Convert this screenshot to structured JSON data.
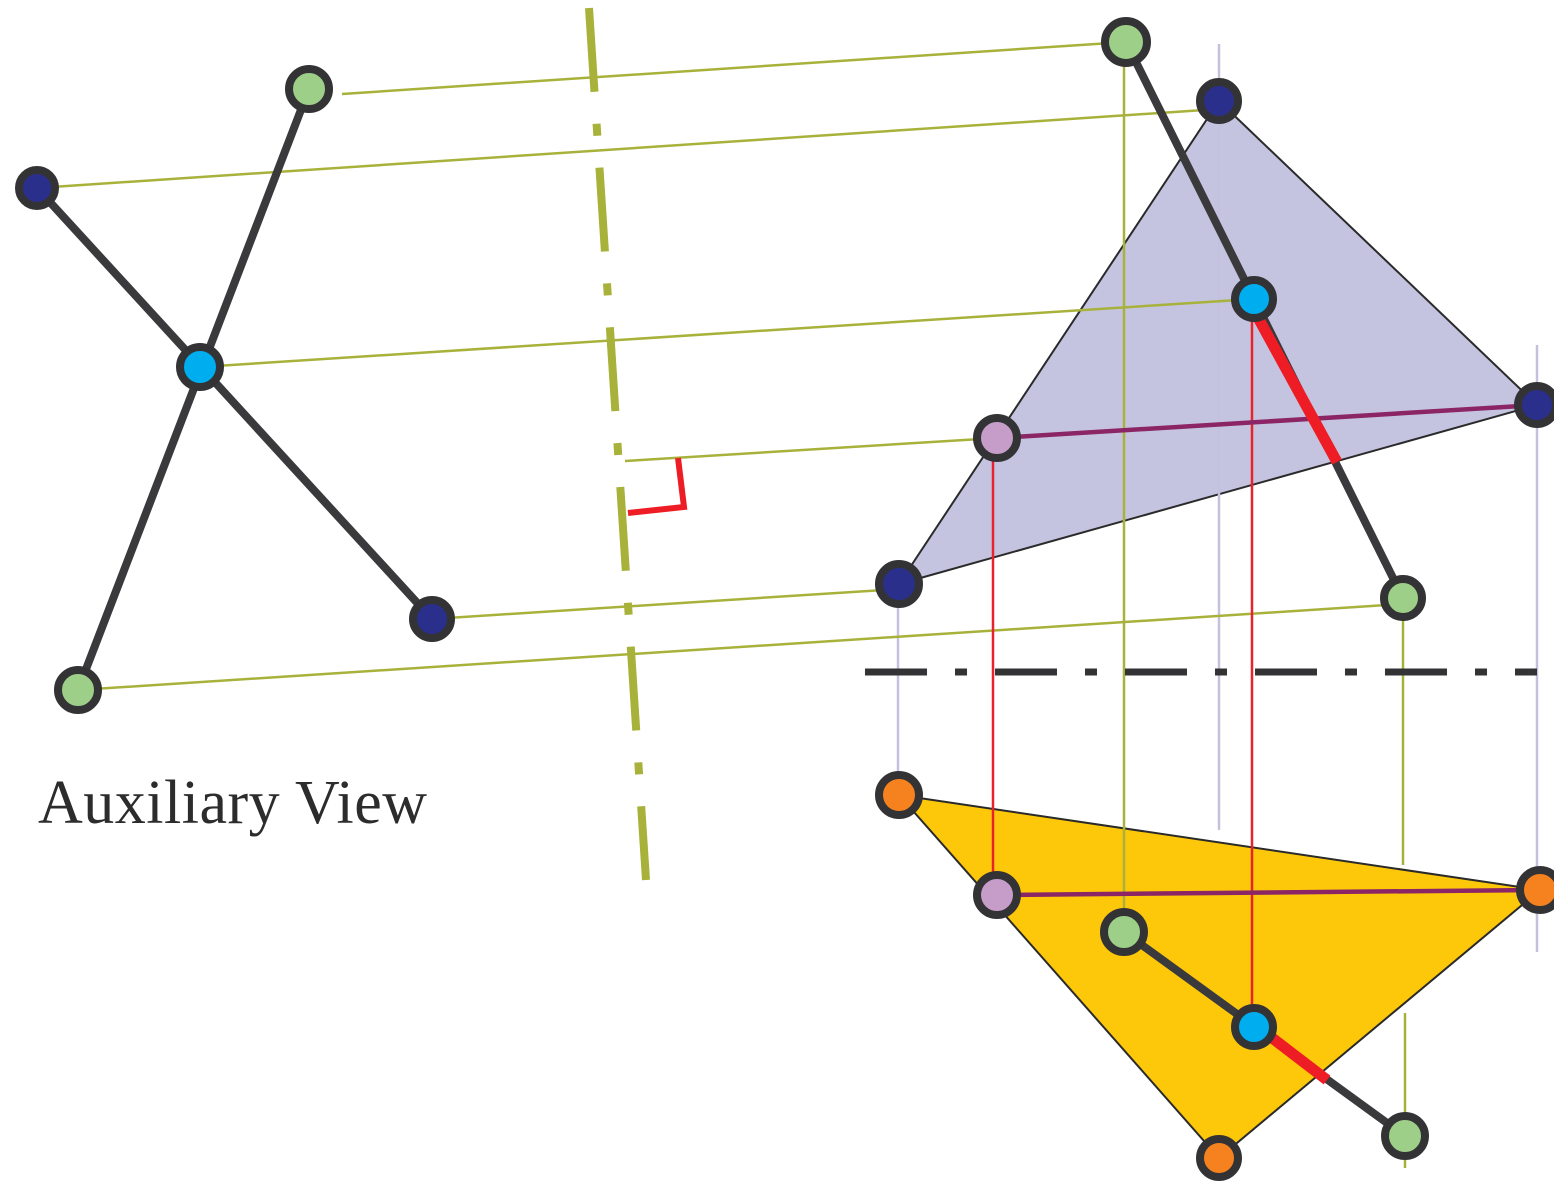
{
  "title": "Auxiliary View",
  "colors": {
    "background": "#ffffff",
    "object_line": "#3a3a3c",
    "projector": "#a8b23a",
    "fold_line_auxiliary": "#a8b23a",
    "fold_line_main": "#333335",
    "plane_top_fill": "#c5c4e0",
    "plane_front_fill": "#fec80a",
    "true_length": "#ee1c24",
    "edge_line": "#8c2565",
    "thin_red_projector": "#e8232b",
    "faint_projector": "#c3c1de",
    "node_green": "#9ecf88",
    "node_navy": "#2a2f8c",
    "node_cyan": "#00adef",
    "node_lilac": "#c69cc8",
    "node_orange": "#f5821f"
  },
  "icons": [
    "right-angle-marker"
  ]
}
